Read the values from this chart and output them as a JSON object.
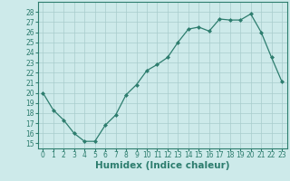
{
  "x": [
    0,
    1,
    2,
    3,
    4,
    5,
    6,
    7,
    8,
    9,
    10,
    11,
    12,
    13,
    14,
    15,
    16,
    17,
    18,
    19,
    20,
    21,
    22,
    23
  ],
  "y": [
    20,
    18.3,
    17.3,
    16.0,
    15.2,
    15.2,
    16.8,
    17.8,
    19.8,
    20.8,
    22.2,
    22.8,
    23.5,
    25.0,
    26.3,
    26.5,
    26.1,
    27.3,
    27.2,
    27.2,
    27.8,
    26.0,
    23.5,
    21.1
  ],
  "xlabel": "Humidex (Indice chaleur)",
  "ylim": [
    14.5,
    29
  ],
  "xlim": [
    -0.5,
    23.5
  ],
  "yticks": [
    15,
    16,
    17,
    18,
    19,
    20,
    21,
    22,
    23,
    24,
    25,
    26,
    27,
    28
  ],
  "xticks": [
    0,
    1,
    2,
    3,
    4,
    5,
    6,
    7,
    8,
    9,
    10,
    11,
    12,
    13,
    14,
    15,
    16,
    17,
    18,
    19,
    20,
    21,
    22,
    23
  ],
  "line_color": "#2d7d6e",
  "marker": "D",
  "marker_size": 2.0,
  "bg_color": "#cdeaea",
  "grid_color": "#a8cccc",
  "tick_label_fontsize": 5.5,
  "xlabel_fontsize": 7.5
}
